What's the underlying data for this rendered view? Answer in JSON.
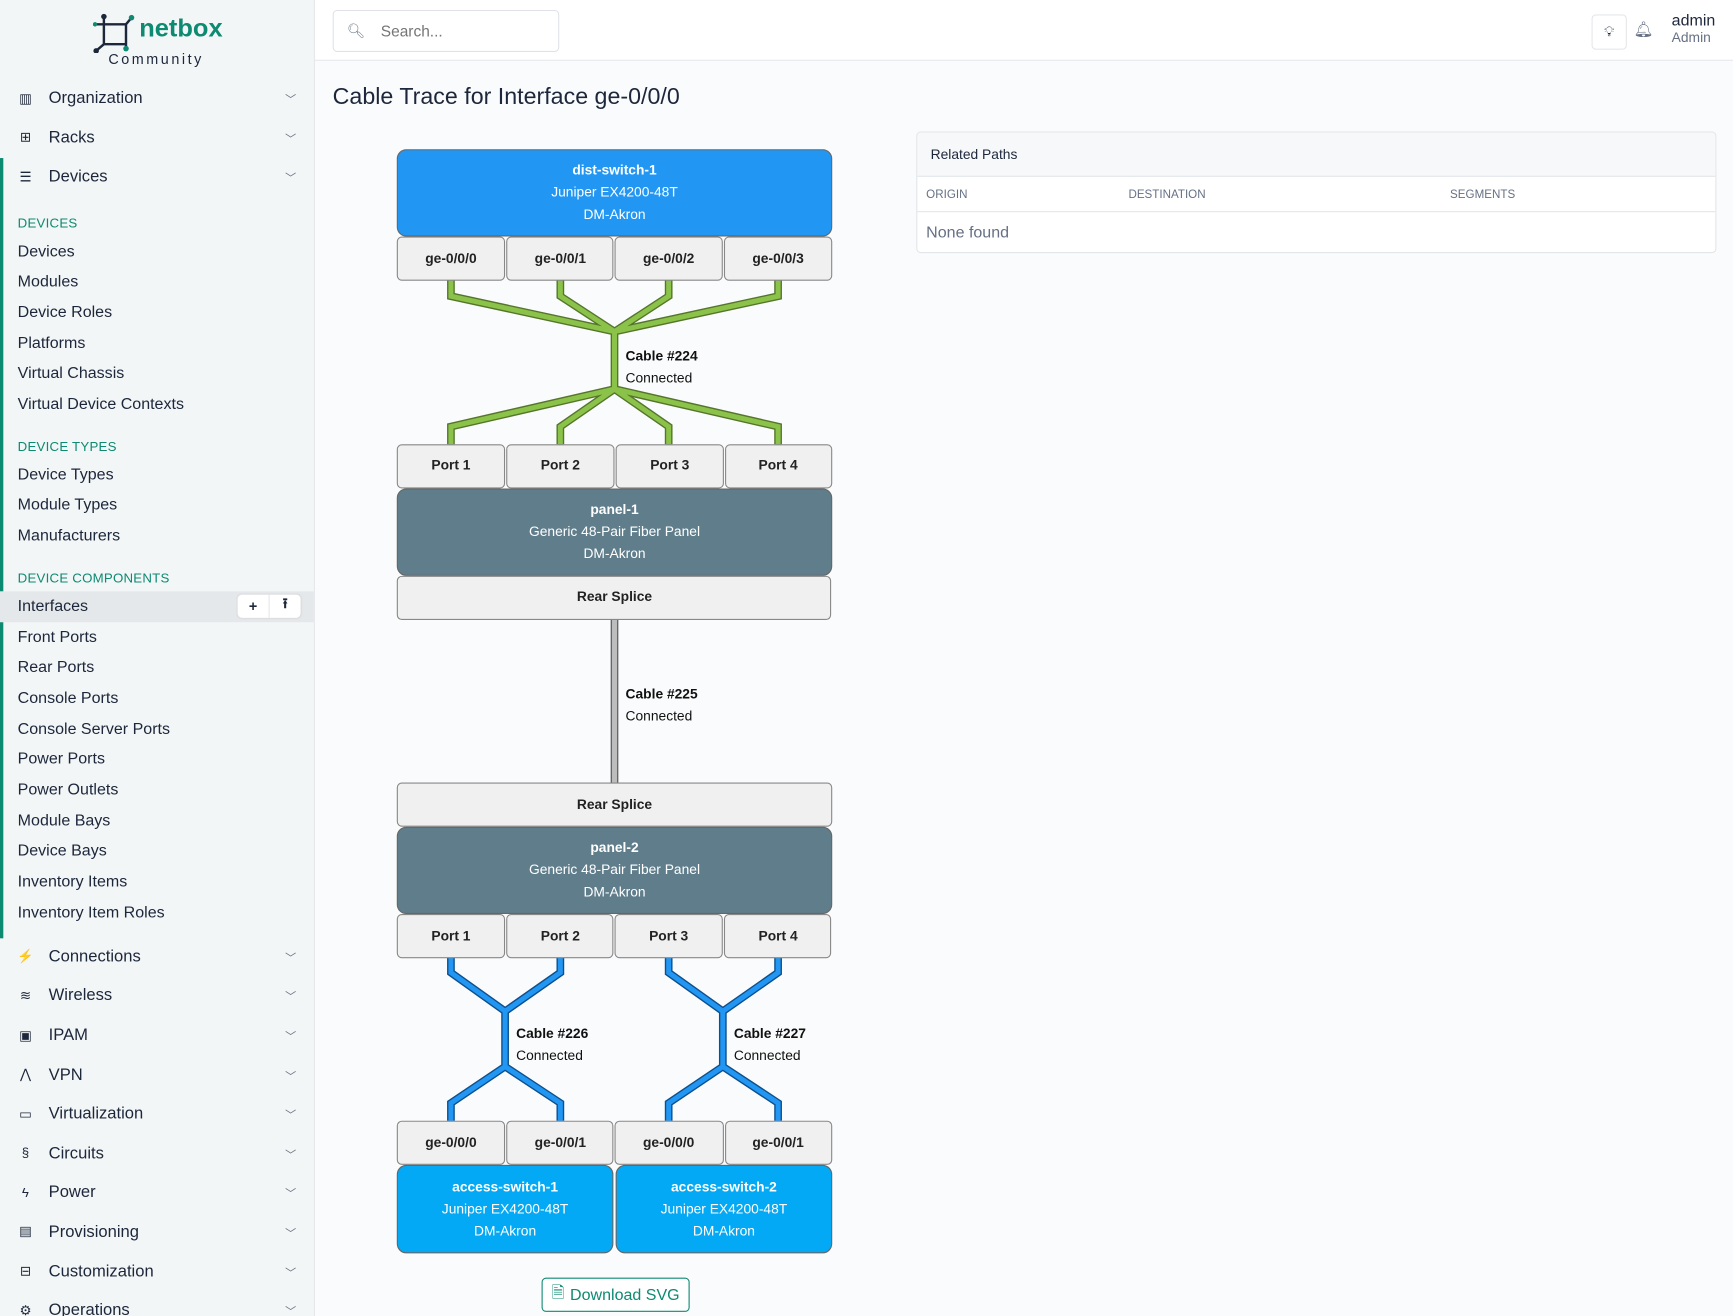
{
  "brand": {
    "name": "netbox",
    "edition": "Community"
  },
  "search": {
    "placeholder": "Search..."
  },
  "user": {
    "name": "admin",
    "role": "Admin"
  },
  "sidebar": {
    "top": [
      {
        "label": "Organization",
        "icon": "building-icon"
      },
      {
        "label": "Racks",
        "icon": "rack-icon"
      },
      {
        "label": "Devices",
        "icon": "server-icon"
      }
    ],
    "sections": [
      {
        "heading": "DEVICES",
        "items": [
          "Devices",
          "Modules",
          "Device Roles",
          "Platforms",
          "Virtual Chassis",
          "Virtual Device Contexts"
        ]
      },
      {
        "heading": "DEVICE TYPES",
        "items": [
          "Device Types",
          "Module Types",
          "Manufacturers"
        ]
      },
      {
        "heading": "DEVICE COMPONENTS",
        "items": [
          "Interfaces",
          "Front Ports",
          "Rear Ports",
          "Console Ports",
          "Console Server Ports",
          "Power Ports",
          "Power Outlets",
          "Module Bays",
          "Device Bays",
          "Inventory Items",
          "Inventory Item Roles"
        ]
      }
    ],
    "bottom": [
      {
        "label": "Connections"
      },
      {
        "label": "Wireless"
      },
      {
        "label": "IPAM"
      },
      {
        "label": "VPN"
      },
      {
        "label": "Virtualization"
      },
      {
        "label": "Circuits"
      },
      {
        "label": "Power"
      },
      {
        "label": "Provisioning"
      },
      {
        "label": "Customization"
      },
      {
        "label": "Operations"
      }
    ],
    "selected": "Interfaces",
    "add_symbol": "+",
    "import_symbol": "⭱"
  },
  "page": {
    "title": "Cable Trace for Interface ge-0/0/0"
  },
  "trace": {
    "dist": {
      "name": "dist-switch-1",
      "type": "Juniper EX4200-48T",
      "site": "DM-Akron",
      "ports": [
        "ge-0/0/0",
        "ge-0/0/1",
        "ge-0/0/2",
        "ge-0/0/3"
      ]
    },
    "cable224": {
      "label": "Cable #224",
      "status": "Connected"
    },
    "panel1": {
      "front": [
        "Port 1",
        "Port 2",
        "Port 3",
        "Port 4"
      ],
      "name": "panel-1",
      "type": "Generic 48-Pair Fiber Panel",
      "site": "DM-Akron",
      "rear": "Rear Splice"
    },
    "cable225": {
      "label": "Cable #225",
      "status": "Connected"
    },
    "panel2": {
      "rear": "Rear Splice",
      "name": "panel-2",
      "type": "Generic 48-Pair Fiber Panel",
      "site": "DM-Akron",
      "front": [
        "Port 1",
        "Port 2",
        "Port 3",
        "Port 4"
      ]
    },
    "cable226": {
      "label": "Cable #226",
      "status": "Connected"
    },
    "cable227": {
      "label": "Cable #227",
      "status": "Connected"
    },
    "access1": {
      "name": "access-switch-1",
      "type": "Juniper EX4200-48T",
      "site": "DM-Akron",
      "ports": [
        "ge-0/0/0",
        "ge-0/0/1"
      ]
    },
    "access2": {
      "name": "access-switch-2",
      "type": "Juniper EX4200-48T",
      "site": "DM-Akron",
      "ports": [
        "ge-0/0/0",
        "ge-0/0/1"
      ]
    },
    "colors": {
      "dist": "#2196f3",
      "panel": "#607d8b",
      "access": "#03a9f4",
      "cable224": "#8bc34a",
      "cable225": "#9e9e9e",
      "cable226": "#2196f3"
    }
  },
  "download": {
    "label": "Download SVG"
  },
  "related": {
    "title": "Related Paths",
    "columns": [
      "ORIGIN",
      "DESTINATION",
      "SEGMENTS"
    ],
    "empty": "None found"
  }
}
